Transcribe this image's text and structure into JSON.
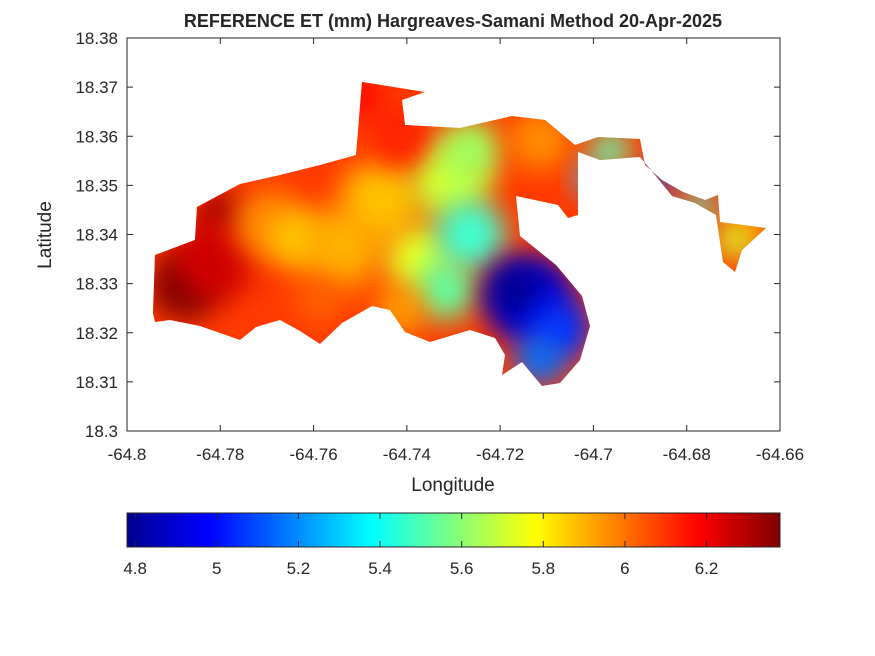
{
  "chart_data": {
    "type": "heatmap",
    "subtype": "filled-contour-map",
    "title": "REFERENCE ET (mm) Hargreaves-Samani Method  20-Apr-2025",
    "xlabel": "Longitude",
    "ylabel": "Latitude",
    "xlim": [
      -64.8,
      -64.66
    ],
    "ylim": [
      18.3,
      18.38
    ],
    "xticks": [
      "-64.8",
      "-64.78",
      "-64.76",
      "-64.74",
      "-64.72",
      "-64.7",
      "-64.68",
      "-64.66"
    ],
    "yticks": [
      "18.3",
      "18.31",
      "18.32",
      "18.33",
      "18.34",
      "18.35",
      "18.36",
      "18.37",
      "18.38"
    ],
    "grid": false,
    "colormap": "jet",
    "colorbar": {
      "location": "bottom",
      "range": [
        4.78,
        6.38
      ],
      "ticks": [
        "4.8",
        "5",
        "5.2",
        "5.4",
        "5.6",
        "5.8",
        "6",
        "6.2"
      ]
    },
    "features": [
      {
        "description": "west end",
        "value_range": [
          6.0,
          6.38
        ]
      },
      {
        "description": "central",
        "value_range": [
          5.6,
          6.0
        ]
      },
      {
        "description": "south-east basin",
        "value_range": [
          4.78,
          5.1
        ]
      },
      {
        "description": "east peninsula",
        "value_range": [
          5.2,
          5.8
        ]
      }
    ]
  }
}
